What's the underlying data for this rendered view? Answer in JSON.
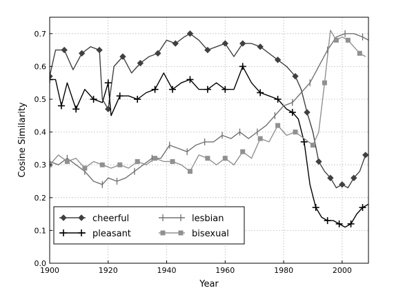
{
  "chart_data": {
    "type": "line",
    "title": "",
    "xlabel": "Year",
    "ylabel": "Cosine Similarity",
    "xlim": [
      1900,
      2009
    ],
    "ylim": [
      0.0,
      0.75
    ],
    "xticks": [
      1900,
      1920,
      1940,
      1960,
      1980,
      2000
    ],
    "yticks": [
      0.0,
      0.1,
      0.2,
      0.3,
      0.4,
      0.5,
      0.6,
      0.7
    ],
    "grid": true,
    "legend_position": "bottom-left",
    "series": [
      {
        "name": "cheerful",
        "marker": "diamond",
        "color": "#404040",
        "x": [
          1900,
          1902,
          1905,
          1908,
          1911,
          1914,
          1917,
          1918,
          1920,
          1922,
          1925,
          1928,
          1931,
          1934,
          1937,
          1940,
          1943,
          1946,
          1948,
          1951,
          1954,
          1957,
          1960,
          1963,
          1966,
          1969,
          1972,
          1975,
          1978,
          1981,
          1984,
          1986,
          1988,
          1990,
          1992,
          1994,
          1996,
          1998,
          2000,
          2002,
          2004,
          2006,
          2008
        ],
        "y": [
          0.57,
          0.65,
          0.65,
          0.59,
          0.64,
          0.66,
          0.65,
          0.5,
          0.47,
          0.6,
          0.63,
          0.58,
          0.61,
          0.63,
          0.64,
          0.68,
          0.67,
          0.69,
          0.7,
          0.68,
          0.65,
          0.66,
          0.67,
          0.63,
          0.67,
          0.67,
          0.66,
          0.64,
          0.62,
          0.6,
          0.57,
          0.53,
          0.46,
          0.4,
          0.31,
          0.28,
          0.26,
          0.23,
          0.24,
          0.23,
          0.26,
          0.28,
          0.33
        ]
      },
      {
        "name": "pleasant",
        "marker": "plus",
        "color": "#000000",
        "x": [
          1900,
          1902,
          1904,
          1906,
          1909,
          1912,
          1915,
          1918,
          1920,
          1921,
          1924,
          1927,
          1930,
          1933,
          1936,
          1939,
          1942,
          1945,
          1948,
          1951,
          1954,
          1957,
          1960,
          1963,
          1966,
          1969,
          1972,
          1975,
          1978,
          1981,
          1983,
          1985,
          1987,
          1989,
          1991,
          1993,
          1995,
          1997,
          1999,
          2001,
          2003,
          2005,
          2007,
          2009
        ],
        "y": [
          0.56,
          0.56,
          0.48,
          0.55,
          0.47,
          0.53,
          0.5,
          0.49,
          0.55,
          0.45,
          0.51,
          0.51,
          0.5,
          0.52,
          0.53,
          0.58,
          0.53,
          0.55,
          0.56,
          0.53,
          0.53,
          0.55,
          0.53,
          0.53,
          0.6,
          0.55,
          0.52,
          0.51,
          0.5,
          0.47,
          0.46,
          0.44,
          0.37,
          0.24,
          0.17,
          0.14,
          0.13,
          0.13,
          0.12,
          0.11,
          0.12,
          0.15,
          0.17,
          0.18
        ]
      },
      {
        "name": "lesbian",
        "marker": "vline",
        "color": "#707070",
        "x": [
          1900,
          1903,
          1906,
          1909,
          1912,
          1915,
          1918,
          1920,
          1923,
          1926,
          1929,
          1932,
          1935,
          1938,
          1941,
          1944,
          1947,
          1950,
          1953,
          1956,
          1959,
          1962,
          1965,
          1968,
          1971,
          1974,
          1977,
          1980,
          1983,
          1986,
          1989,
          1992,
          1995,
          1998,
          2001,
          2004,
          2007,
          2009
        ],
        "y": [
          0.31,
          0.3,
          0.32,
          0.3,
          0.28,
          0.25,
          0.24,
          0.26,
          0.25,
          0.26,
          0.28,
          0.3,
          0.32,
          0.32,
          0.36,
          0.35,
          0.34,
          0.36,
          0.37,
          0.37,
          0.39,
          0.38,
          0.4,
          0.38,
          0.4,
          0.42,
          0.45,
          0.48,
          0.49,
          0.52,
          0.55,
          0.6,
          0.65,
          0.69,
          0.7,
          0.7,
          0.69,
          0.68
        ]
      },
      {
        "name": "bisexual",
        "marker": "square",
        "color": "#909090",
        "x": [
          1900,
          1903,
          1906,
          1909,
          1912,
          1915,
          1918,
          1921,
          1924,
          1927,
          1930,
          1933,
          1936,
          1939,
          1942,
          1945,
          1948,
          1951,
          1954,
          1957,
          1960,
          1963,
          1966,
          1969,
          1972,
          1975,
          1978,
          1981,
          1984,
          1987,
          1990,
          1992,
          1994,
          1996,
          1998,
          2000,
          2002,
          2004,
          2006,
          2008
        ],
        "y": [
          0.3,
          0.33,
          0.31,
          0.32,
          0.29,
          0.31,
          0.3,
          0.29,
          0.3,
          0.29,
          0.31,
          0.3,
          0.32,
          0.31,
          0.31,
          0.3,
          0.28,
          0.33,
          0.32,
          0.3,
          0.32,
          0.3,
          0.34,
          0.32,
          0.38,
          0.37,
          0.42,
          0.39,
          0.4,
          0.38,
          0.36,
          0.4,
          0.55,
          0.71,
          0.68,
          0.69,
          0.68,
          0.66,
          0.64,
          0.63
        ]
      }
    ]
  }
}
